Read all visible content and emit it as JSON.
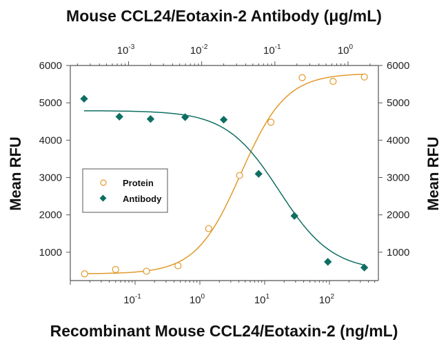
{
  "chart_data": {
    "type": "scatter",
    "title": "Mouse CCL24/Eotaxin-2 Antibody (μg/mL)",
    "xlabel": "Recombinant Mouse CCL24/Eotaxin-2 (ng/mL)",
    "ylabel": "Mean RFU",
    "ylabel_right": "Mean RFU",
    "x_scale": "log",
    "x_top_scale": "log",
    "xlim": [
      0.01,
      570
    ],
    "x_top_lim": [
      0.00016,
      2.6
    ],
    "ylim": [
      240,
      6000
    ],
    "y_ticks": [
      "1000",
      "2000",
      "3000",
      "4000",
      "5000",
      "6000"
    ],
    "x_ticks": [
      {
        "value": 0.1,
        "base": "10",
        "exp": "-1"
      },
      {
        "value": 1,
        "base": "10",
        "exp": "0"
      },
      {
        "value": 10,
        "base": "10",
        "exp": "1"
      },
      {
        "value": 100,
        "base": "10",
        "exp": "2"
      }
    ],
    "x_top_ticks": [
      {
        "value": 0.001,
        "base": "10",
        "exp": "-3"
      },
      {
        "value": 0.01,
        "base": "10",
        "exp": "-2"
      },
      {
        "value": 0.1,
        "base": "10",
        "exp": "-1"
      },
      {
        "value": 1,
        "base": "10",
        "exp": "0"
      }
    ],
    "grid": false,
    "legend_placement": "center-left",
    "series": [
      {
        "name": "Protein",
        "axis": "bottom",
        "marker": "open-circle",
        "color": "#e0992a",
        "x": [
          0.0166,
          0.05,
          0.15,
          0.46,
          1.37,
          4.1,
          12.5,
          38,
          114,
          346
        ],
        "y": [
          420,
          535,
          490,
          636,
          1633,
          3054,
          4482,
          5674,
          5576,
          5692
        ],
        "fit": {
          "model": "4PL",
          "bottom": 420,
          "top": 5790,
          "ec50": 4.3,
          "hill": 1.25
        }
      },
      {
        "name": "Antibody",
        "axis": "top",
        "marker": "filled-diamond",
        "color": "#0e6e62",
        "x": [
          0.000247,
          0.00075,
          0.002,
          0.00594,
          0.02,
          0.06,
          0.185,
          0.53,
          1.67
        ],
        "y": [
          5109,
          4629,
          4567,
          4616,
          4548,
          3098,
          1972,
          742,
          588
        ],
        "fit": {
          "model": "4PL",
          "bottom": 490,
          "top": 4790,
          "ec50": 0.115,
          "hill": 1.2
        }
      }
    ]
  }
}
